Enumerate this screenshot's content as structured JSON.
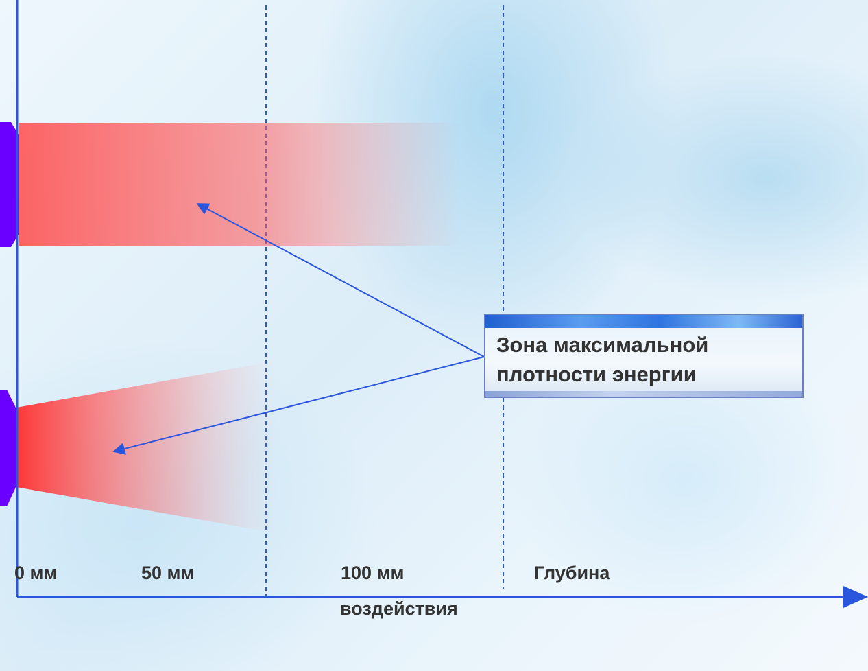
{
  "callout": {
    "line1": "Зона максимальной",
    "line2": "плотности энергии"
  },
  "axis": {
    "tick_0": "0 мм",
    "tick_50": "50 мм",
    "tick_100": "100 мм",
    "title_line1": "Глубина",
    "title_line2": "воздействия"
  },
  "colors": {
    "axis": "#2a55dd",
    "applicator": "#6a00ff",
    "energy_zone": "#ff3b3b",
    "grid": "#2a55dd"
  }
}
